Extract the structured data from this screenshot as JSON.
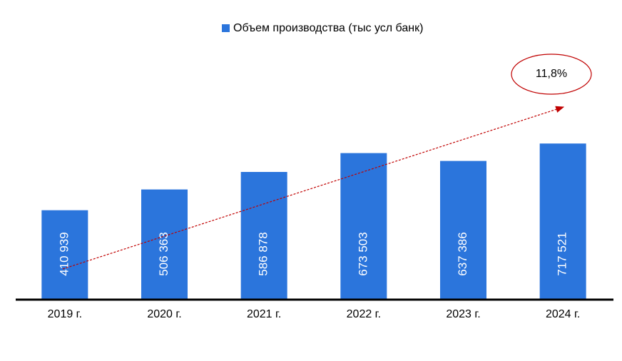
{
  "chart_data": {
    "type": "bar",
    "legend_name": "Объем производства (тыс усл банк)",
    "categories": [
      "2019 г.",
      "2020 г.",
      "2021 г.",
      "2022 г.",
      "2023 г.",
      "2024 г."
    ],
    "values": [
      410939,
      506363,
      586878,
      673503,
      637386,
      717521
    ],
    "value_labels": [
      "410 939",
      "506 363",
      "586 878",
      "673 503",
      "637 386",
      "717 521"
    ],
    "color": "#2b75dc",
    "ylim": [
      0,
      800000
    ],
    "annotation": "11,8%"
  }
}
